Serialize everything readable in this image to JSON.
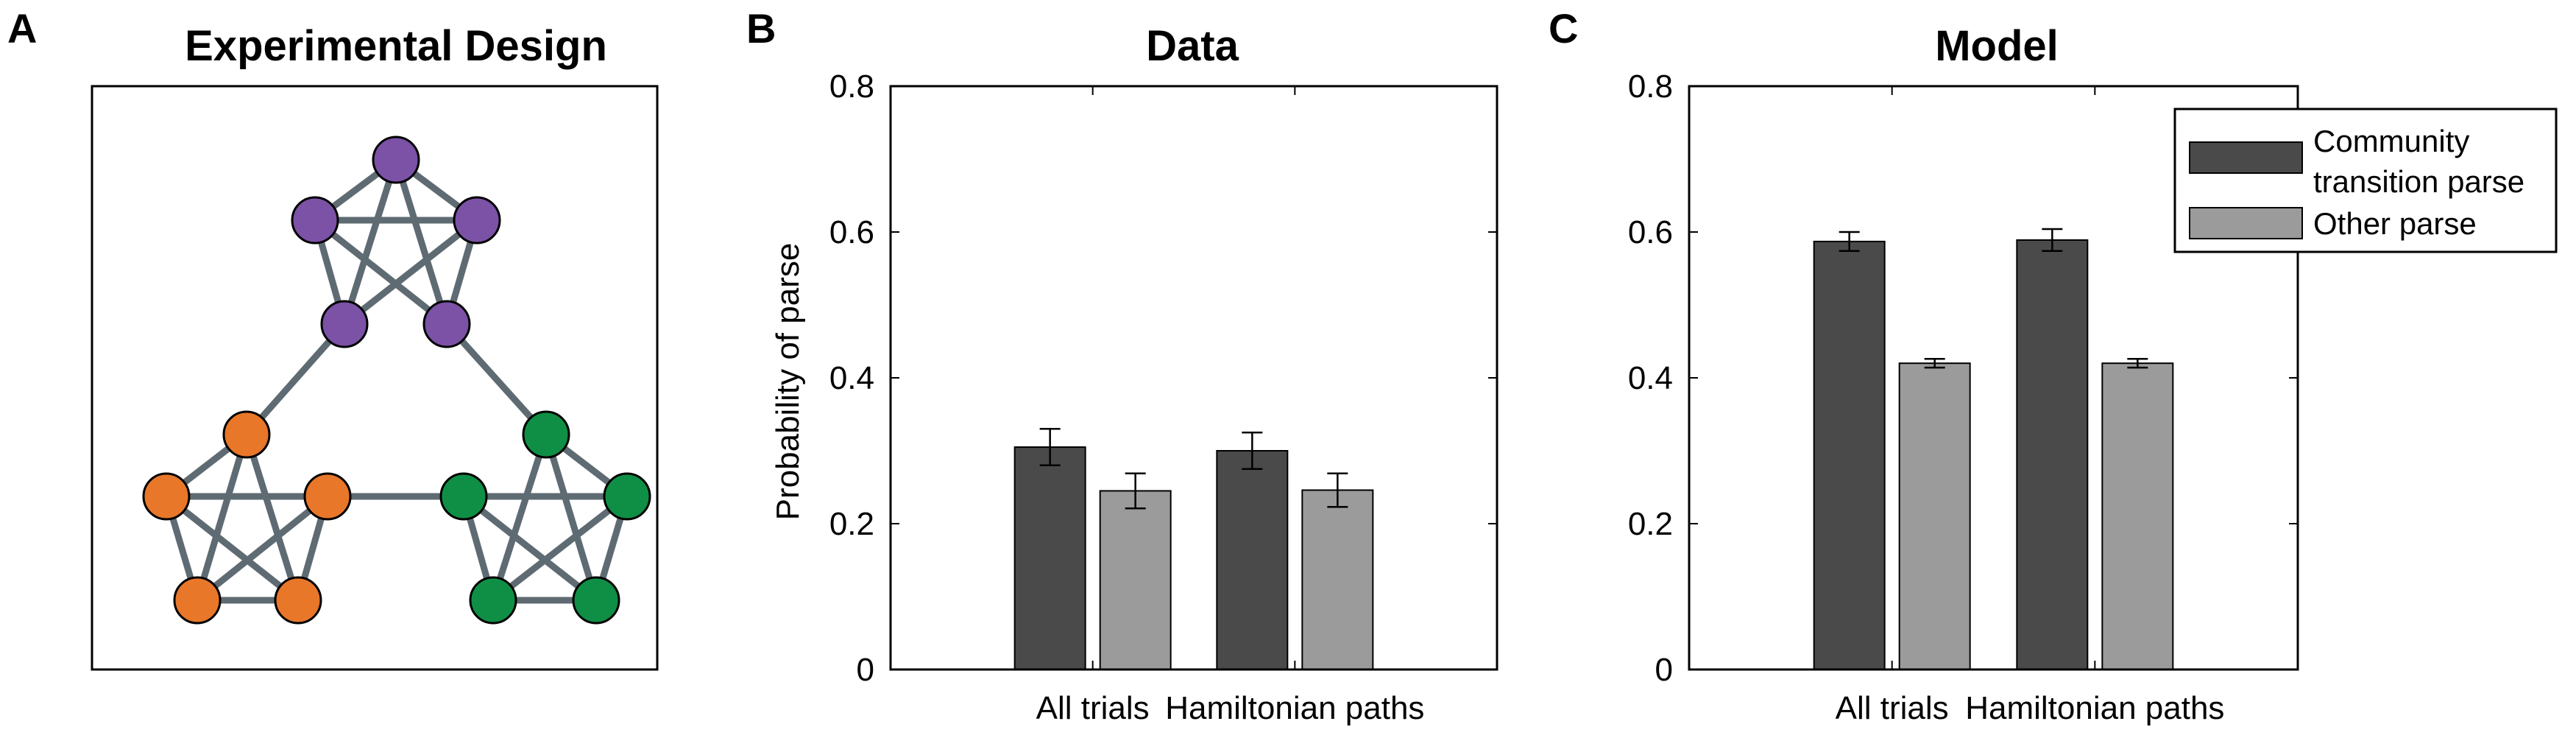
{
  "panels": {
    "a": {
      "letter": "A",
      "title": "Experimental Design"
    },
    "b": {
      "letter": "B",
      "title": "Data"
    },
    "c": {
      "letter": "C",
      "title": "Model"
    }
  },
  "network": {
    "node_colors": {
      "top": "#7b52a6",
      "left": "#e8772a",
      "right": "#0f8f45"
    },
    "edge_color": "#5f6b72"
  },
  "colors": {
    "community": "#4a4a4a",
    "other": "#9b9b9b"
  },
  "chart_data": [
    {
      "type": "bar",
      "title": "Data",
      "ylabel": "Probability of parse",
      "xlabel": "",
      "categories": [
        "All trials",
        "Hamiltonian paths"
      ],
      "ylim": [
        0,
        0.8
      ],
      "yticks": [
        "0",
        "0.2",
        "0.4",
        "0.6",
        "0.8"
      ],
      "series": [
        {
          "values": [
            0.305,
            0.3
          ],
          "errors": [
            0.025,
            0.025
          ]
        },
        {
          "values": [
            0.245,
            0.246
          ],
          "errors": [
            0.024,
            0.023
          ]
        }
      ]
    },
    {
      "type": "bar",
      "title": "Model",
      "ylabel": "",
      "xlabel": "",
      "categories": [
        "All trials",
        "Hamiltonian paths"
      ],
      "ylim": [
        0,
        0.8
      ],
      "yticks": [
        "0",
        "0.2",
        "0.4",
        "0.6",
        "0.8"
      ],
      "legend": {
        "position": "top-right",
        "entries": [
          {
            "line1": "Community",
            "line2": "transition parse"
          },
          {
            "line1": "Other parse",
            "line2": ""
          }
        ]
      },
      "series": [
        {
          "name": "Community transition parse",
          "values": [
            0.587,
            0.589
          ],
          "errors": [
            0.013,
            0.015
          ]
        },
        {
          "name": "Other parse",
          "values": [
            0.42,
            0.42
          ],
          "errors": [
            0.006,
            0.006
          ]
        }
      ]
    }
  ]
}
